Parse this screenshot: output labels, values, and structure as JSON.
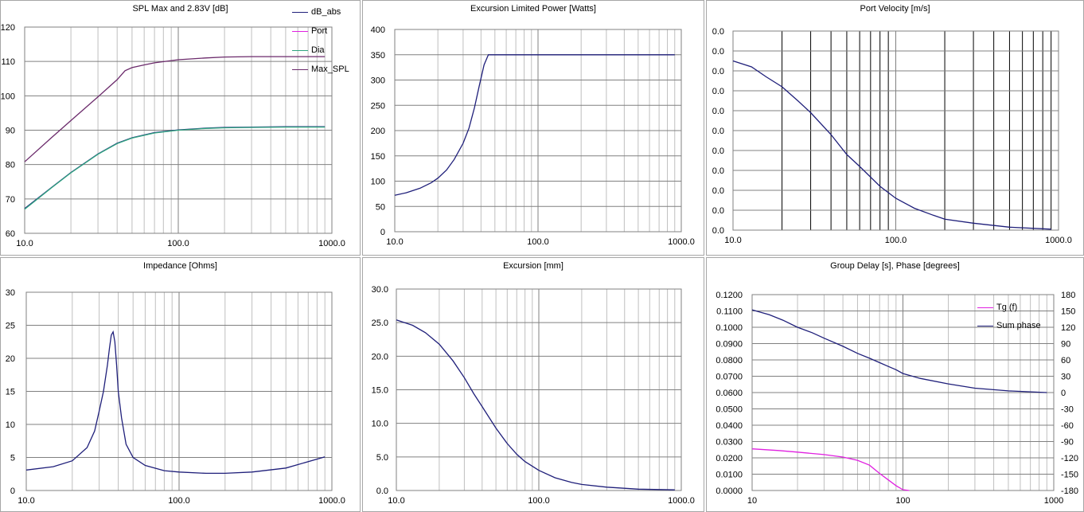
{
  "colors": {
    "navy": "#1f1f7a",
    "magenta": "#e020e0",
    "teal": "#2fa580",
    "purple": "#6b2a6b",
    "grid": "#bfbfbf",
    "gridMajor": "#808080"
  },
  "chart_data": [
    {
      "id": "spl",
      "type": "line",
      "title": "SPL Max and 2.83V [dB]",
      "xscale": "log",
      "xlim": [
        10,
        1000
      ],
      "ylim": [
        60,
        120
      ],
      "xticks": [
        "10.0",
        "100.0",
        "1000.0"
      ],
      "yticks": [
        "60",
        "70",
        "80",
        "90",
        "100",
        "110",
        "120"
      ],
      "legend_position": "top-right",
      "series": [
        {
          "name": "dB_abs",
          "color": "#1f1f7a",
          "x": [
            10,
            15,
            20,
            30,
            40,
            50,
            70,
            100,
            150,
            200,
            300,
            500,
            900
          ],
          "y": [
            67.2,
            73.4,
            77.7,
            83.1,
            86.2,
            87.8,
            89.3,
            90.1,
            90.6,
            90.8,
            90.9,
            91.0,
            91.0
          ]
        },
        {
          "name": "Port",
          "color": "#e020e0",
          "x": [],
          "y": []
        },
        {
          "name": "Dia",
          "color": "#2fa580",
          "x": [
            10,
            15,
            20,
            30,
            40,
            50,
            70,
            100,
            150,
            200,
            300,
            500,
            900
          ],
          "y": [
            67.0,
            73.3,
            77.6,
            83.0,
            86.1,
            87.7,
            89.2,
            90.0,
            90.5,
            90.7,
            90.8,
            90.9,
            90.9
          ]
        },
        {
          "name": "Max_SPL",
          "color": "#6b2a6b",
          "x": [
            10,
            15,
            20,
            30,
            40,
            45,
            50,
            60,
            70,
            100,
            150,
            200,
            300,
            500,
            900
          ],
          "y": [
            80.8,
            87.9,
            92.8,
            99.7,
            104.7,
            107.3,
            108.2,
            109.0,
            109.6,
            110.5,
            111.0,
            111.3,
            111.4,
            111.4,
            111.4
          ]
        }
      ]
    },
    {
      "id": "power",
      "type": "line",
      "title": "Excursion Limited Power [Watts]",
      "xscale": "log",
      "xlim": [
        10,
        1000
      ],
      "ylim": [
        0,
        400
      ],
      "xticks": [
        "10.0",
        "100.0",
        "1000.0"
      ],
      "yticks": [
        "0",
        "50",
        "100",
        "150",
        "200",
        "250",
        "300",
        "350",
        "400"
      ],
      "series": [
        {
          "color": "#1f1f7a",
          "x": [
            10,
            12,
            15,
            18,
            20,
            23,
            26,
            30,
            33,
            36,
            39,
            42,
            45,
            47,
            60,
            100,
            200,
            500,
            900
          ],
          "y": [
            72,
            77,
            86,
            97,
            106,
            122,
            143,
            175,
            205,
            245,
            290,
            330,
            350,
            350,
            350,
            350,
            350,
            350,
            350
          ]
        }
      ]
    },
    {
      "id": "portvel",
      "type": "line",
      "title": "Port Velocity [m/s]",
      "xscale": "log",
      "xlim": [
        10,
        1000
      ],
      "ylim": [
        0,
        10
      ],
      "xticks": [
        "10.0",
        "100.0",
        "1000.0"
      ],
      "yticks": [
        "0.0",
        "0.0",
        "0.0",
        "0.0",
        "0.0",
        "0.0",
        "0.0",
        "0.0",
        "0.0",
        "0.0",
        "0.0"
      ],
      "series": [
        {
          "color": "#1f1f7a",
          "x": [
            10,
            13,
            16,
            20,
            25,
            30,
            40,
            50,
            60,
            80,
            100,
            130,
            170,
            200,
            300,
            500,
            900
          ],
          "y": [
            8.5,
            8.2,
            7.7,
            7.2,
            6.5,
            5.9,
            4.8,
            3.8,
            3.2,
            2.2,
            1.6,
            1.1,
            0.75,
            0.55,
            0.35,
            0.15,
            0.05
          ]
        }
      ]
    },
    {
      "id": "impedance",
      "type": "line",
      "title": "Impedance [Ohms]",
      "xscale": "log",
      "xlim": [
        10,
        1000
      ],
      "ylim": [
        0,
        30
      ],
      "xticks": [
        "10.0",
        "100.0",
        "1000.0"
      ],
      "yticks": [
        "0",
        "5",
        "10",
        "15",
        "20",
        "25",
        "30"
      ],
      "series": [
        {
          "color": "#1f1f7a",
          "x": [
            10,
            15,
            20,
            25,
            28,
            30,
            32,
            34,
            35,
            36,
            37,
            38,
            39,
            40,
            42,
            45,
            50,
            60,
            80,
            100,
            150,
            200,
            300,
            500,
            900
          ],
          "y": [
            3.1,
            3.6,
            4.5,
            6.5,
            9,
            12,
            15,
            19,
            21.5,
            23.5,
            24,
            22.5,
            19,
            15,
            11,
            7,
            5,
            3.8,
            3.0,
            2.8,
            2.6,
            2.6,
            2.8,
            3.4,
            5.1
          ]
        }
      ]
    },
    {
      "id": "excursion",
      "type": "line",
      "title": "Excursion [mm]",
      "xscale": "log",
      "xlim": [
        10,
        1000
      ],
      "ylim": [
        0,
        30
      ],
      "xticks": [
        "10.0",
        "100.0",
        "1000.0"
      ],
      "yticks": [
        "0.0",
        "5.0",
        "10.0",
        "15.0",
        "20.0",
        "25.0",
        "30.0"
      ],
      "series": [
        {
          "color": "#1f1f7a",
          "x": [
            10,
            13,
            16,
            20,
            25,
            30,
            35,
            40,
            50,
            60,
            70,
            80,
            100,
            130,
            170,
            200,
            300,
            500,
            900
          ],
          "y": [
            25.4,
            24.6,
            23.5,
            21.8,
            19.3,
            16.8,
            14.4,
            12.5,
            9.3,
            7.0,
            5.4,
            4.3,
            3.0,
            1.9,
            1.2,
            0.9,
            0.5,
            0.2,
            0.1
          ]
        }
      ]
    },
    {
      "id": "groupdelay",
      "type": "line",
      "title": "Group Delay [s], Phase [degrees]",
      "xscale": "log",
      "xlim": [
        10,
        1000
      ],
      "ylim": [
        0,
        0.12
      ],
      "y2lim": [
        -180,
        180
      ],
      "xticks": [
        "10",
        "100",
        "1000"
      ],
      "yticks": [
        "0.0000",
        "0.0100",
        "0.0200",
        "0.0300",
        "0.0400",
        "0.0500",
        "0.0600",
        "0.0700",
        "0.0800",
        "0.0900",
        "0.1000",
        "0.1100",
        "0.1200"
      ],
      "y2ticks": [
        "-180",
        "-150",
        "-120",
        "-90",
        "-60",
        "-30",
        "0",
        "30",
        "60",
        "90",
        "120",
        "150",
        "180"
      ],
      "legend_position": "top-right",
      "series": [
        {
          "name": "Tg (f)",
          "color": "#e020e0",
          "axis": "left",
          "x": [
            10,
            15,
            20,
            30,
            40,
            50,
            60,
            70,
            80,
            90,
            100,
            110
          ],
          "y": [
            0.0255,
            0.0245,
            0.0235,
            0.022,
            0.0205,
            0.0185,
            0.0155,
            0.0105,
            0.0065,
            0.003,
            0.0005,
            0.0
          ]
        },
        {
          "name": "Sum phase",
          "color": "#1f1f7a",
          "axis": "right",
          "x": [
            10,
            13,
            16,
            20,
            25,
            30,
            40,
            50,
            60,
            70,
            80,
            90,
            100,
            130,
            200,
            300,
            500,
            900
          ],
          "y": [
            152,
            143,
            133,
            120,
            110,
            100,
            85,
            72,
            63,
            55,
            48,
            42,
            35,
            26,
            16,
            8,
            3,
            0
          ]
        }
      ]
    }
  ]
}
